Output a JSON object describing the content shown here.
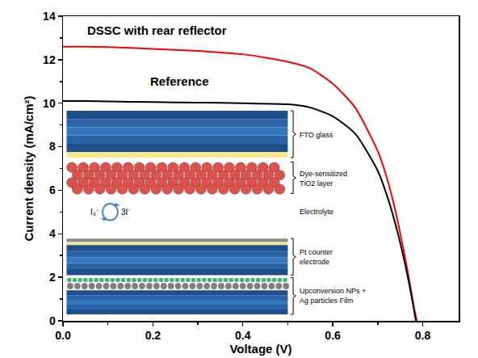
{
  "chart_data": {
    "type": "line",
    "x_label": "Voltage (V)",
    "y_label": "Current density (mA/cm²)",
    "xlim": [
      0,
      0.88
    ],
    "ylim": [
      0,
      14
    ],
    "xticks": [
      {
        "value": 0,
        "label": "0.0"
      },
      {
        "value": 0.2,
        "label": "0.2"
      },
      {
        "value": 0.4,
        "label": "0.4"
      },
      {
        "value": 0.6,
        "label": "0.6"
      },
      {
        "value": 0.8,
        "label": "0.8"
      }
    ],
    "yticks": [
      0,
      2,
      4,
      6,
      8,
      10,
      12,
      14
    ],
    "grid": false,
    "series": [
      {
        "name": "DSSC with rear reflector",
        "color": "#ff0000",
        "line_style": "solid",
        "x": [
          0,
          0.05,
          0.1,
          0.2,
          0.3,
          0.4,
          0.5,
          0.55,
          0.6,
          0.65,
          0.7,
          0.72,
          0.74,
          0.76,
          0.77,
          0.78,
          0.787
        ],
        "values": [
          12.6,
          12.6,
          12.58,
          12.5,
          12.4,
          12.25,
          11.9,
          11.6,
          10.9,
          9.8,
          7.8,
          6.6,
          5.0,
          3.0,
          1.9,
          0.7,
          0
        ]
      },
      {
        "name": "Reference",
        "color": "#000000",
        "line_style": "solid",
        "x": [
          0,
          0.05,
          0.1,
          0.2,
          0.3,
          0.4,
          0.5,
          0.55,
          0.6,
          0.65,
          0.7,
          0.72,
          0.74,
          0.76,
          0.77,
          0.78,
          0.785
        ],
        "values": [
          10.1,
          10.1,
          10.08,
          10.05,
          10.03,
          10.0,
          9.95,
          9.8,
          9.4,
          8.6,
          6.9,
          5.8,
          4.4,
          2.7,
          1.7,
          0.6,
          0
        ]
      }
    ],
    "inset": {
      "layers": [
        "FTO glass",
        "Dye-sensitized TiO2 layer",
        "Electrolyte",
        "Pt counter electrode",
        "Upconversion NPs + Ag particles Film"
      ],
      "redox": [
        "I₃⁻",
        "3I⁻"
      ]
    }
  }
}
